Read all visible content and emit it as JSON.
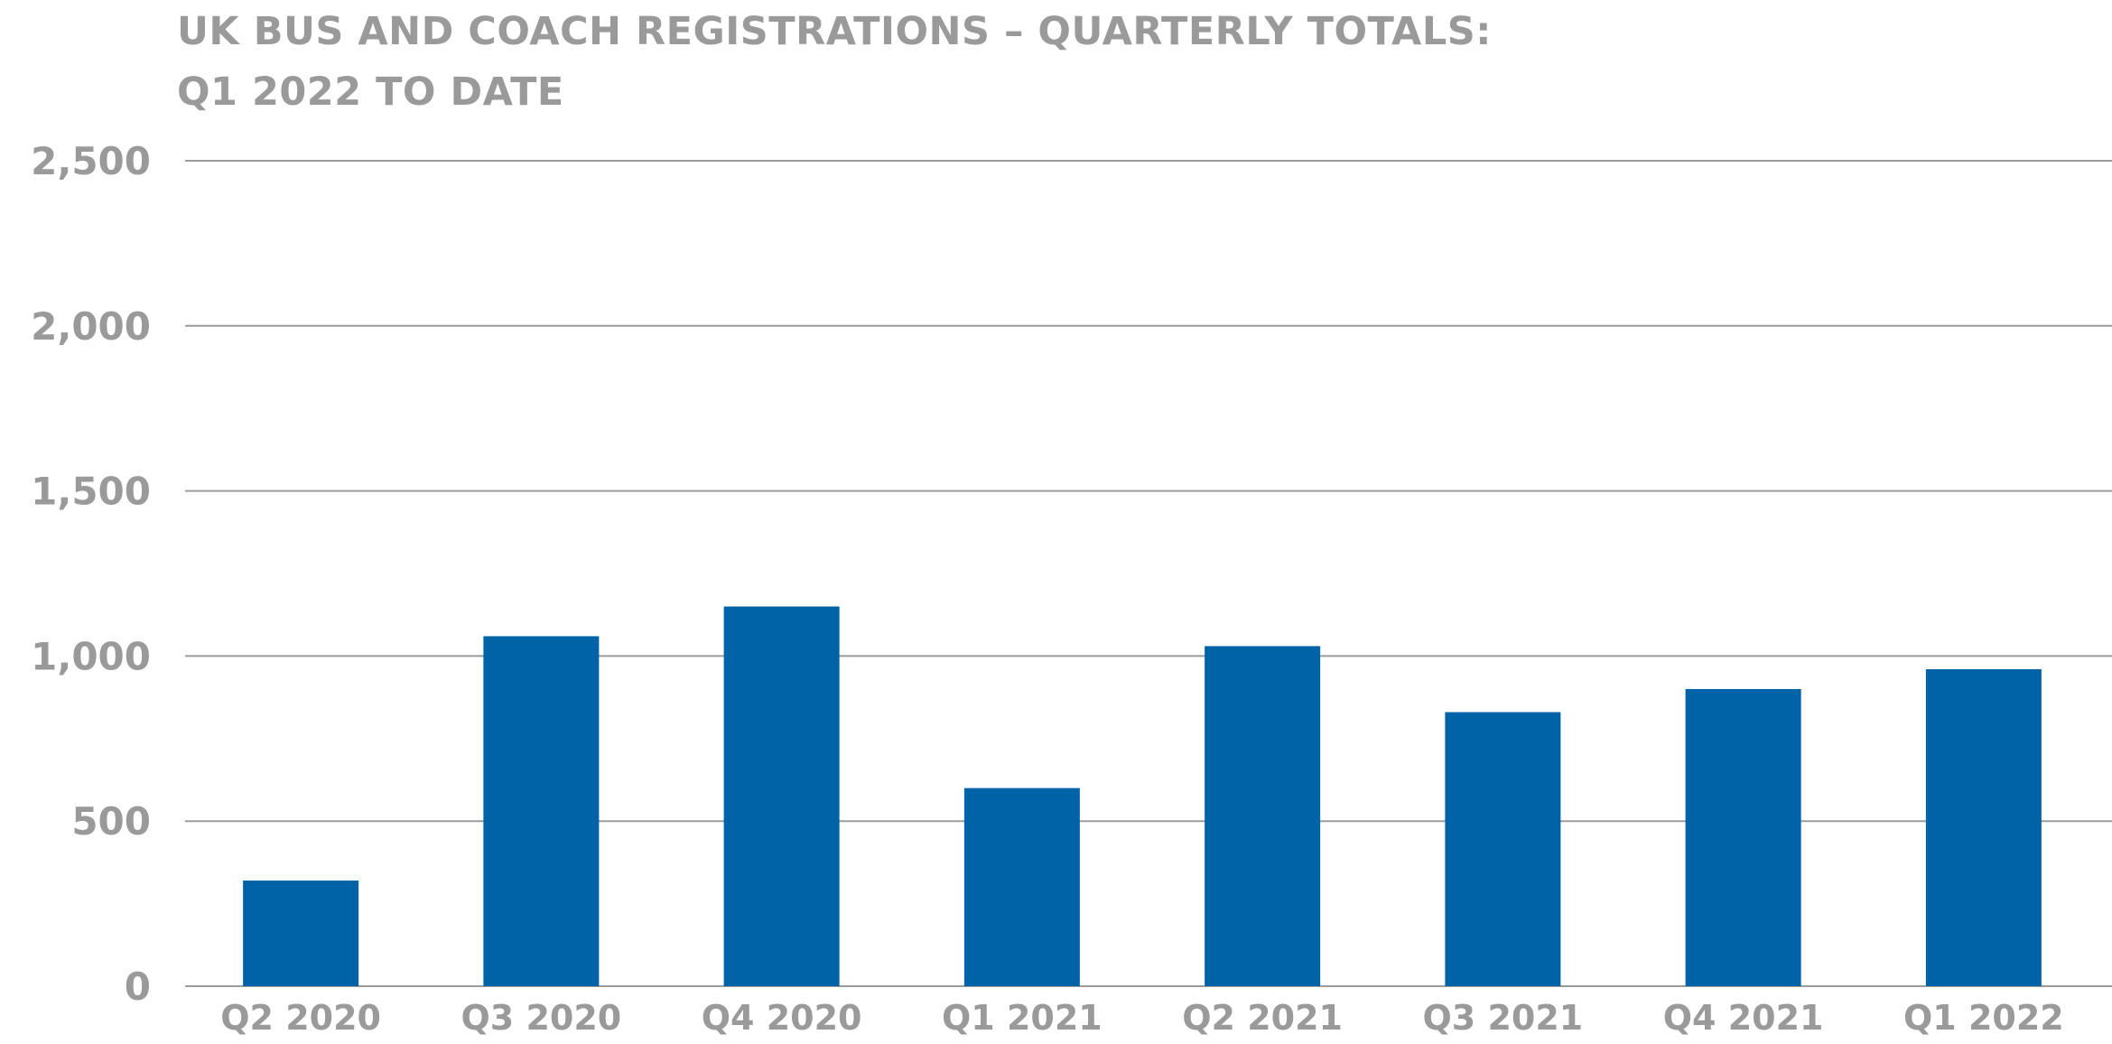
{
  "chart_data": {
    "type": "bar",
    "title": [
      "UK BUS AND COACH REGISTRATIONS – QUARTERLY TOTALS:",
      "Q1 2022 TO DATE"
    ],
    "xlabel": "",
    "ylabel": "",
    "categories": [
      "Q2 2020",
      "Q3 2020",
      "Q4 2020",
      "Q1 2021",
      "Q2 2021",
      "Q3 2021",
      "Q4 2021",
      "Q1 2022"
    ],
    "series": [
      {
        "values": [
          320,
          1060,
          1150,
          600,
          1030,
          830,
          900,
          960
        ]
      }
    ],
    "ylim": [
      0,
      2500
    ],
    "yticks": [
      0,
      500,
      1000,
      1500,
      2000,
      2500
    ],
    "ytick_labels": [
      "0",
      "500",
      "1,000",
      "1,500",
      "2,000",
      "2,500"
    ],
    "grid": "horizontal",
    "legend": "none",
    "colors": {
      "bar": "#0063a8",
      "gridline": "#9b9b9b",
      "text": "#9a9a9a"
    }
  }
}
